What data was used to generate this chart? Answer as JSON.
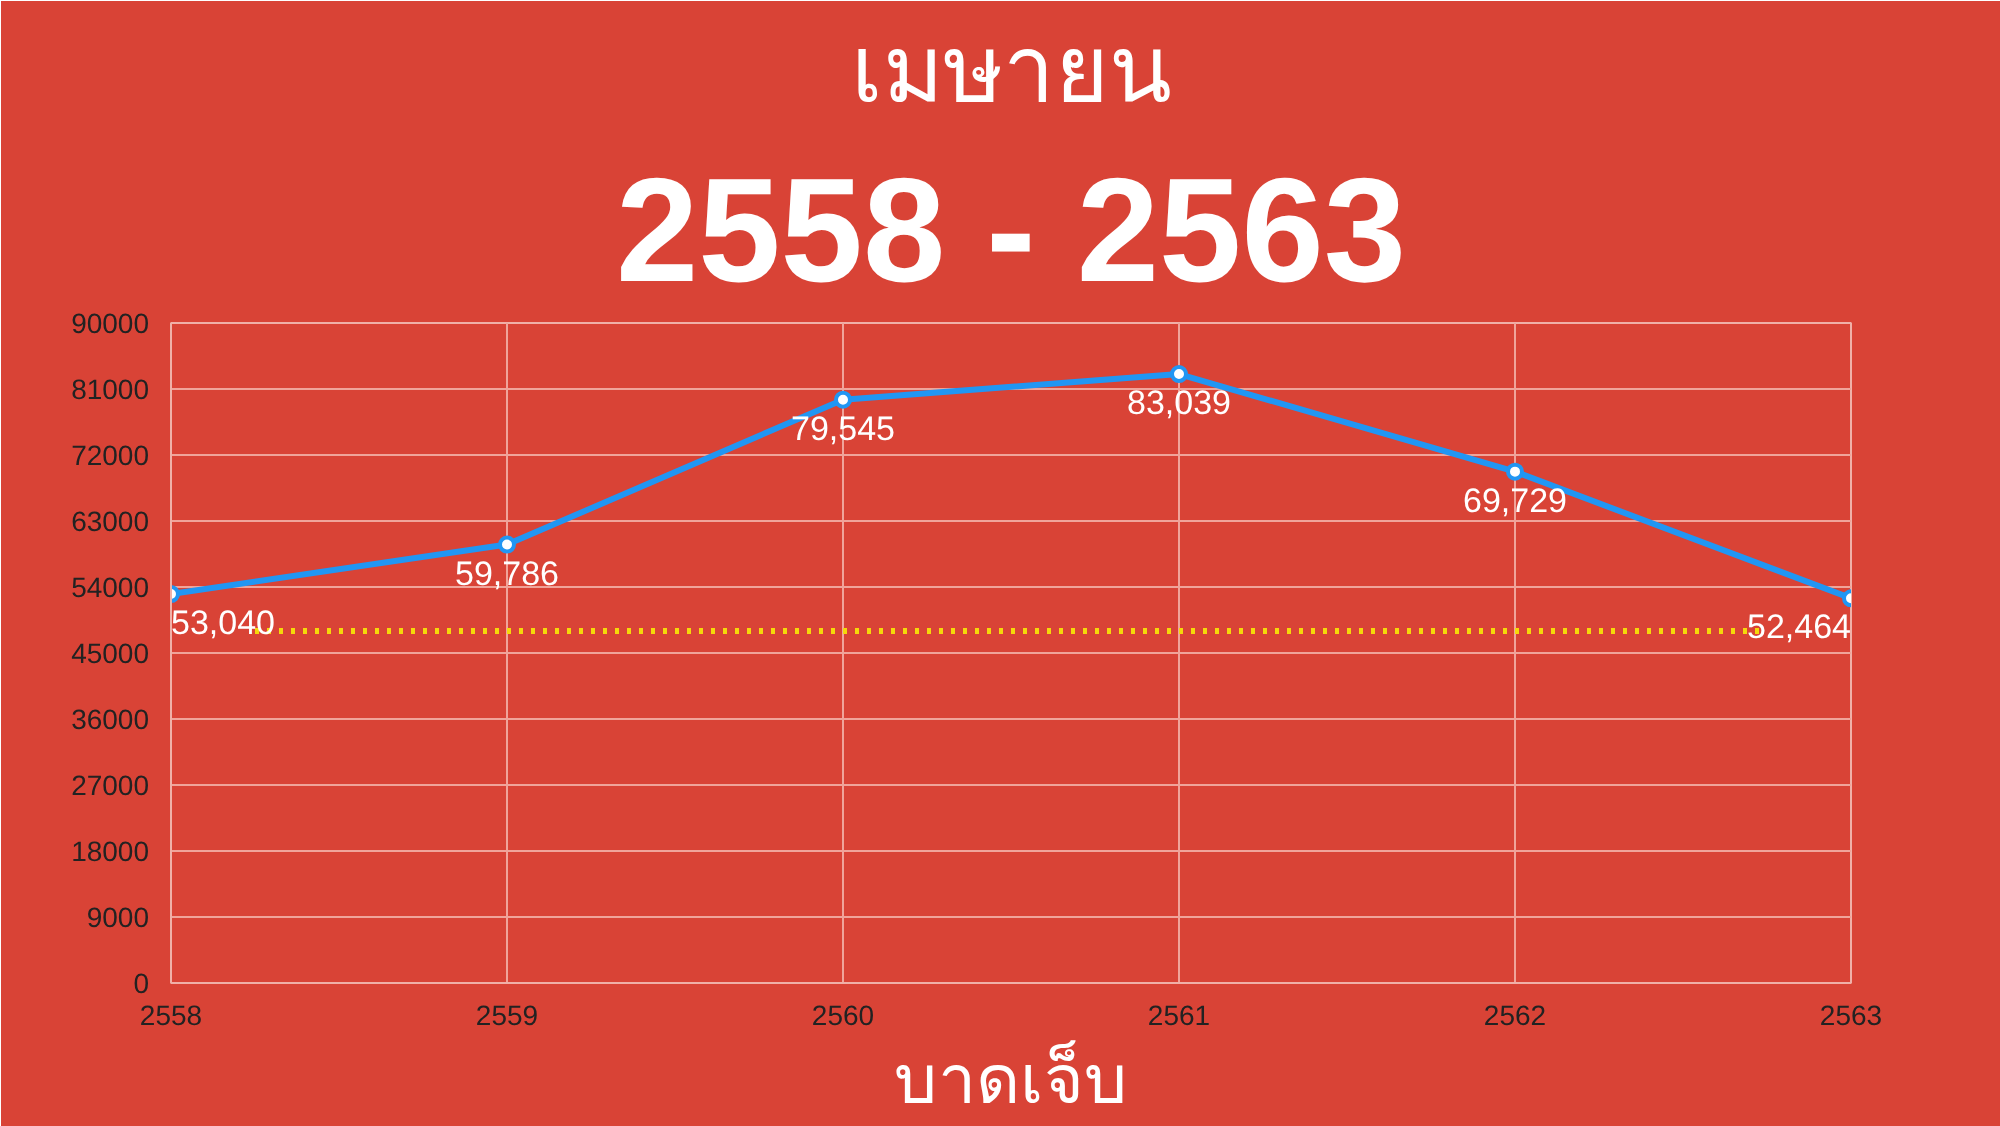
{
  "chart_data": {
    "type": "line",
    "title": "เมษายน",
    "subtitle": "2558 - 2563",
    "xlabel": "บาดเจ็บ",
    "x": [
      2558,
      2559,
      2560,
      2561,
      2562,
      2563
    ],
    "series": [
      {
        "color": "#2196f3",
        "values": [
          53040,
          59786,
          79545,
          83039,
          69729,
          52464
        ],
        "value_labels": [
          "53,040",
          "59,786",
          "79,545",
          "83,039",
          "69,729",
          "52,464"
        ]
      }
    ],
    "xlim": [
      2558,
      2563
    ],
    "xticks": [
      2558,
      2559,
      2560,
      2561,
      2562,
      2563
    ],
    "ylim": [
      0,
      90000
    ],
    "yticks": [
      0,
      9000,
      18000,
      27000,
      36000,
      45000,
      54000,
      63000,
      72000,
      81000,
      90000
    ],
    "grid": true,
    "marker": "circle",
    "line_style": "solid",
    "ref_lines": [
      {
        "axis": "y",
        "value": 48000,
        "color": "#f5d90a",
        "line_style": "dotted"
      }
    ]
  }
}
